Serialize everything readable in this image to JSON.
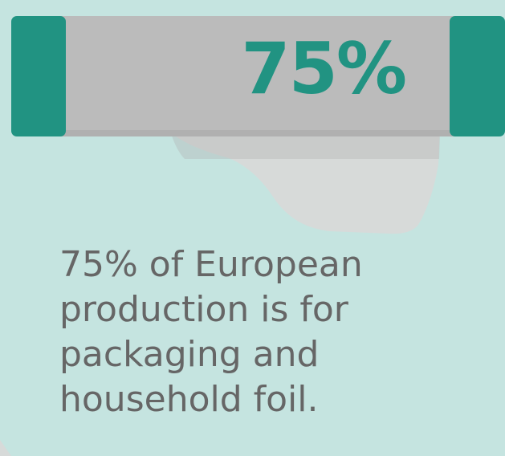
{
  "colors": {
    "background": "#c5e4e0",
    "accent_green": "#219382",
    "foil_grey": "#bbbbbb",
    "foil_grey_dark": "#b0b0b0",
    "curl_light": "#d7dad9",
    "text_grey": "#666666"
  },
  "banner": {
    "percentage": "75%",
    "percentage_value": 75
  },
  "caption": {
    "lines": [
      "75% of European",
      "production is for",
      "packaging and",
      "household foil."
    ]
  }
}
